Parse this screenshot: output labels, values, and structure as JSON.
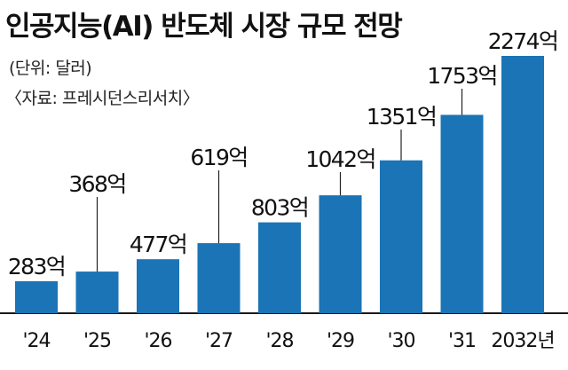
{
  "title": "인공지능(AI) 반도체 시장 규모 전망",
  "unit_note": "(단위: 달러)",
  "source_note": "〈자료: 프레시던스리서치〉",
  "chart_data": {
    "type": "bar",
    "title": "인공지능(AI) 반도체 시장 규모 전망",
    "categories": [
      "'24",
      "'25",
      "'26",
      "'27",
      "'28",
      "'29",
      "'30",
      "'31",
      "2032년"
    ],
    "values": [
      283,
      368,
      477,
      619,
      803,
      1042,
      1351,
      1753,
      2274
    ],
    "value_labels": [
      "283억",
      "368억",
      "477억",
      "619억",
      "803억",
      "1042억",
      "1351억",
      "1753억",
      "2274억"
    ],
    "unit": "억 달러",
    "bar_color": "#1a74b6",
    "grid": false,
    "legend": "none"
  }
}
